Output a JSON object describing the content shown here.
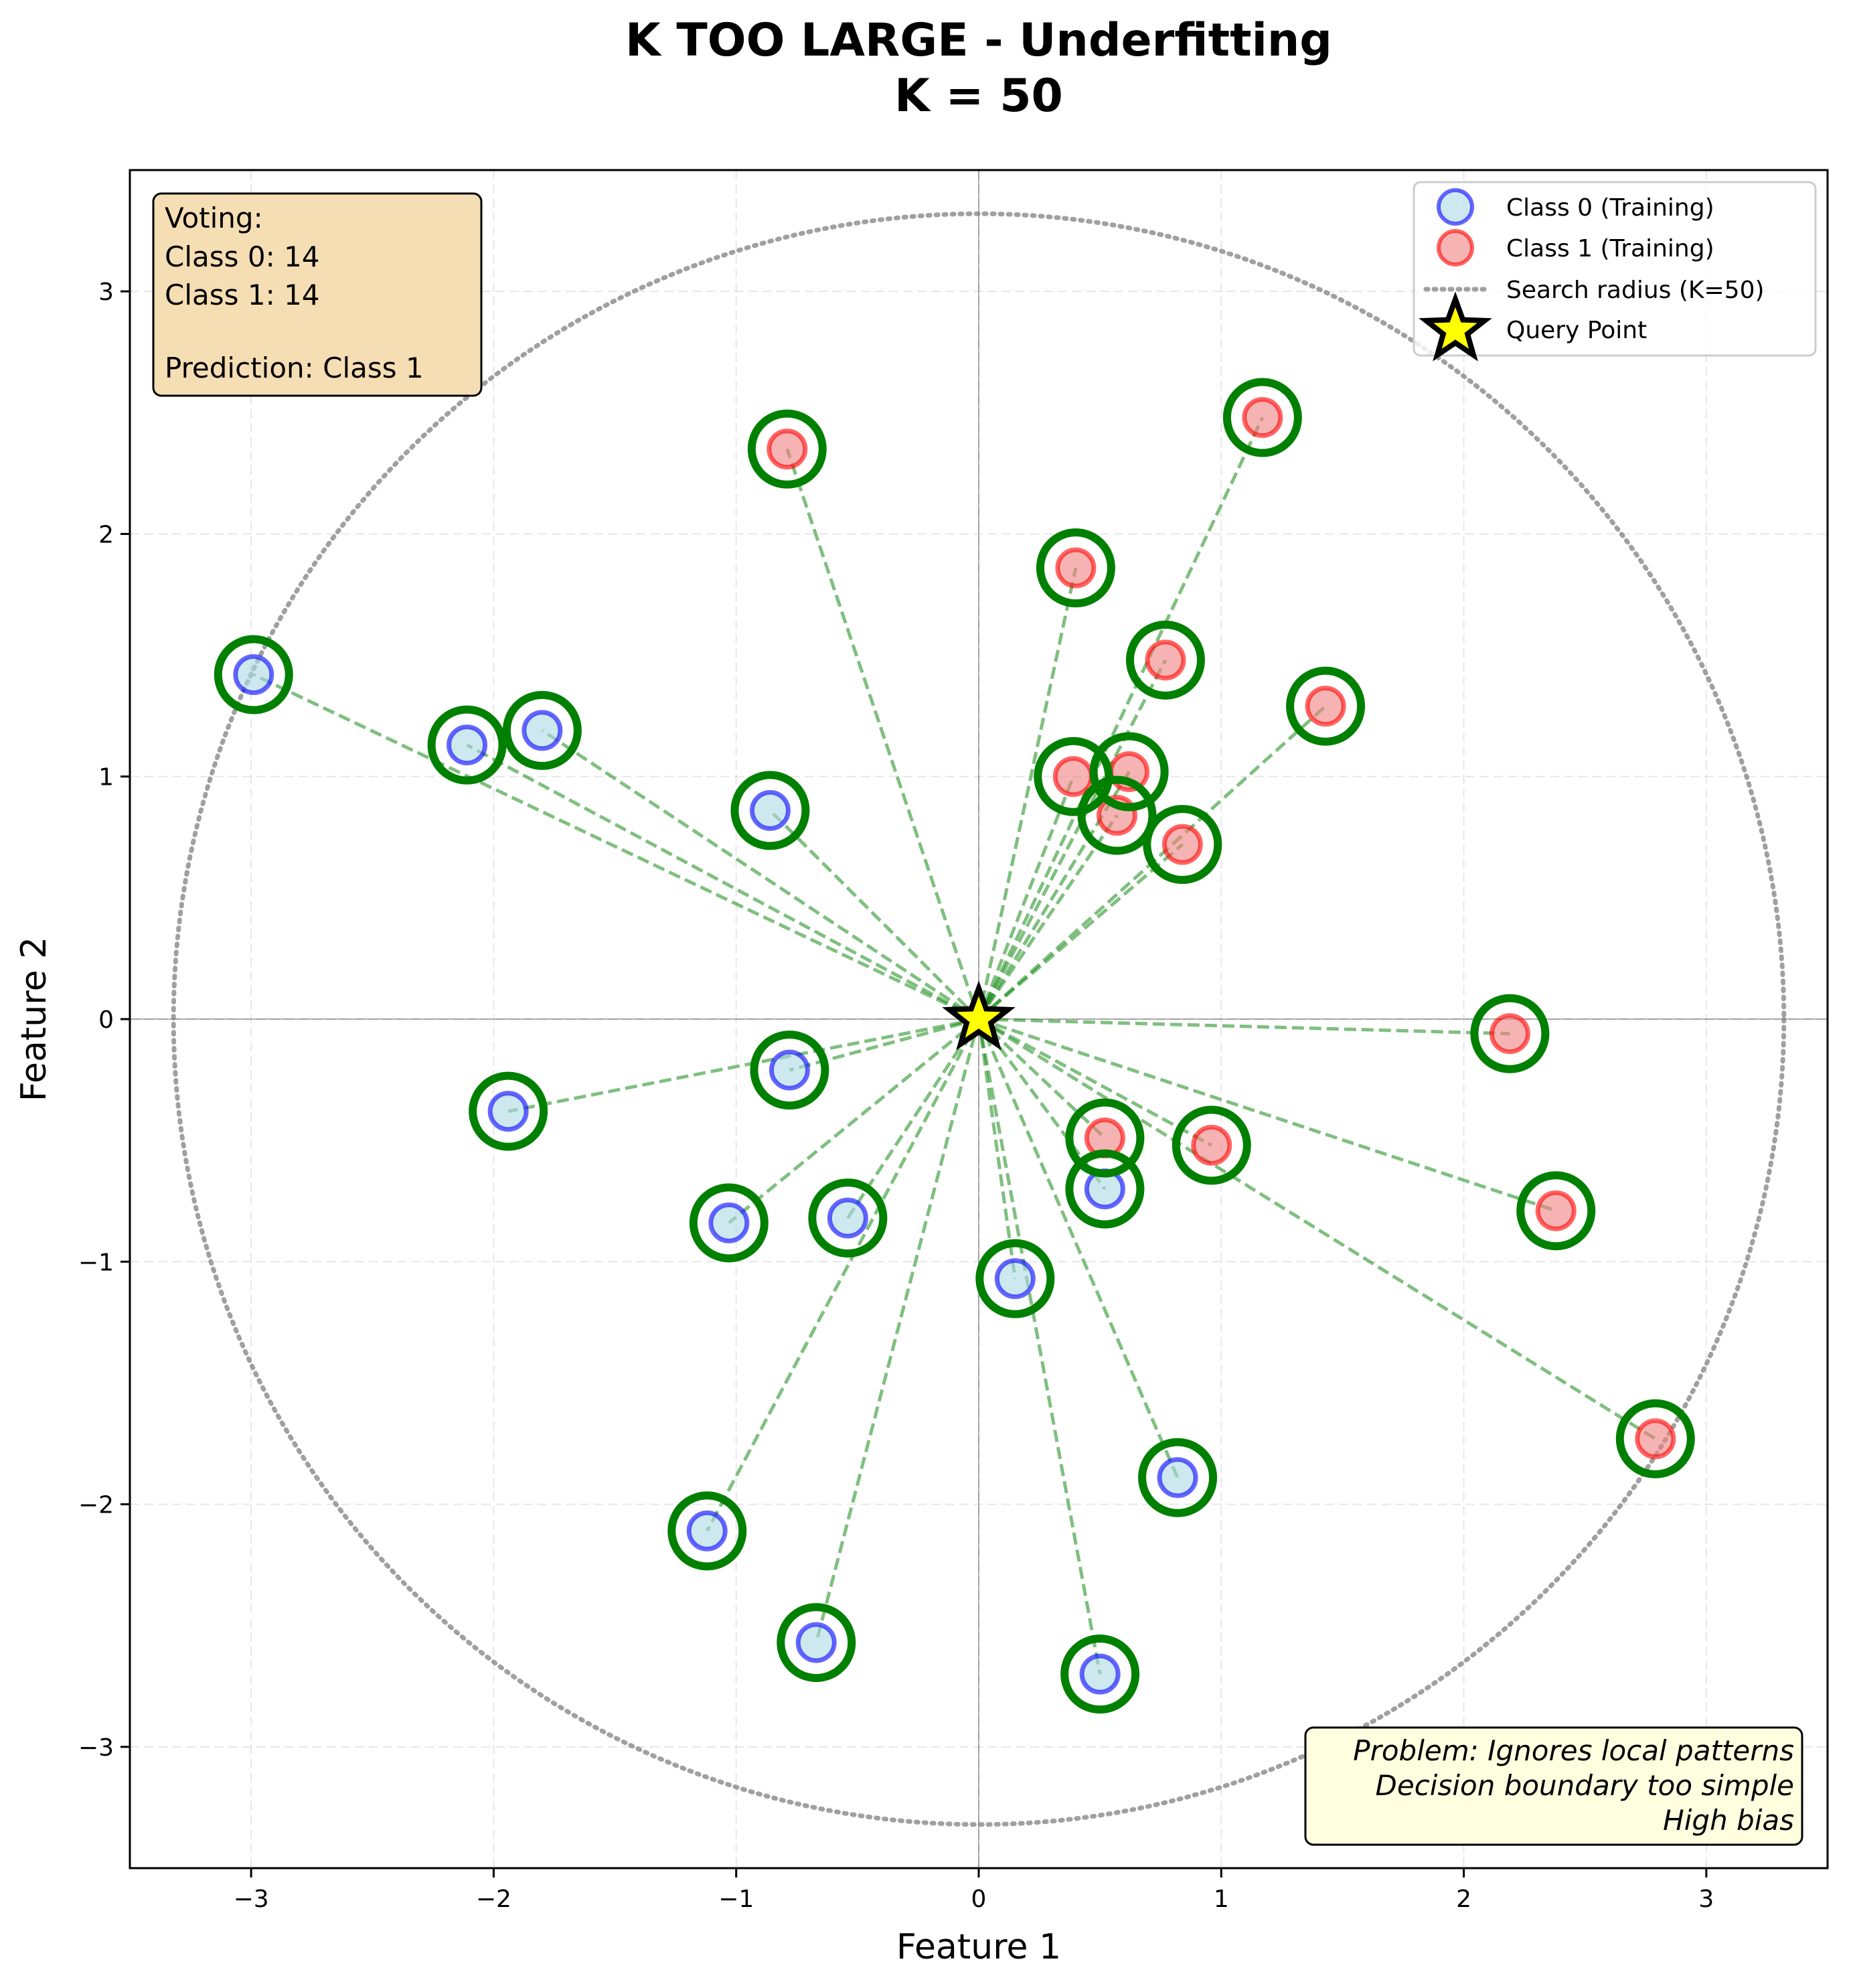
{
  "chart_data": {
    "type": "scatter",
    "title_line1": "K TOO LARGE - Underfitting",
    "title_line2": "K = 50",
    "xlabel": "Feature 1",
    "ylabel": "Feature 2",
    "xlim": [
      -3.5,
      3.5
    ],
    "ylim": [
      -3.5,
      3.5
    ],
    "xticks": [
      -3,
      -2,
      -1,
      0,
      1,
      2,
      3
    ],
    "yticks": [
      -3,
      -2,
      -1,
      0,
      1,
      2,
      3
    ],
    "xtick_labels": [
      "−3",
      "−2",
      "−1",
      "0",
      "1",
      "2",
      "3"
    ],
    "ytick_labels": [
      "−3",
      "−2",
      "−1",
      "0",
      "1",
      "2",
      "3"
    ],
    "grid": true,
    "legend_position": "top-right",
    "colors": {
      "class0_fill": "#add8e6",
      "class0_edge": "#0000ff",
      "class1_fill": "#f08080",
      "class1_edge": "#ff0000",
      "neighbor_ring": "#008000",
      "query_fill": "#ffff00",
      "radius_line": "#808080",
      "voting_box": "#f5deb3",
      "problem_box": "#ffffe0"
    },
    "query_point": {
      "x": 0,
      "y": 0
    },
    "search_radius": 3.32,
    "legend": [
      {
        "key": "class0",
        "label": "Class 0 (Training)"
      },
      {
        "key": "class1",
        "label": "Class 1 (Training)"
      },
      {
        "key": "radius",
        "label": "Search radius (K=50)"
      },
      {
        "key": "query",
        "label": "Query Point"
      }
    ],
    "voting_box": {
      "line1": "Voting:",
      "line2": "Class 0: 14",
      "line3": "Class 1: 14",
      "line4": "Prediction: Class 1"
    },
    "problem_box": {
      "line1": "Problem: Ignores local patterns",
      "line2": "Decision boundary too simple",
      "line3": "High bias"
    },
    "class0_points": [
      {
        "x": -2.99,
        "y": 1.42
      },
      {
        "x": -2.11,
        "y": 1.13
      },
      {
        "x": -1.8,
        "y": 1.19
      },
      {
        "x": -0.86,
        "y": 0.86
      },
      {
        "x": -0.78,
        "y": -0.21
      },
      {
        "x": -1.94,
        "y": -0.38
      },
      {
        "x": -1.03,
        "y": -0.84
      },
      {
        "x": -0.54,
        "y": -0.82
      },
      {
        "x": 0.15,
        "y": -1.07
      },
      {
        "x": 0.52,
        "y": -0.7
      },
      {
        "x": 0.82,
        "y": -1.89
      },
      {
        "x": -1.12,
        "y": -2.11
      },
      {
        "x": -0.67,
        "y": -2.57
      },
      {
        "x": 0.5,
        "y": -2.7
      }
    ],
    "class1_points": [
      {
        "x": -0.79,
        "y": 2.35
      },
      {
        "x": 1.17,
        "y": 2.48
      },
      {
        "x": 0.4,
        "y": 1.86
      },
      {
        "x": 0.77,
        "y": 1.48
      },
      {
        "x": 1.43,
        "y": 1.29
      },
      {
        "x": 0.39,
        "y": 1.0
      },
      {
        "x": 0.62,
        "y": 1.02
      },
      {
        "x": 0.57,
        "y": 0.84
      },
      {
        "x": 0.84,
        "y": 0.72
      },
      {
        "x": 2.19,
        "y": -0.06
      },
      {
        "x": 0.52,
        "y": -0.49
      },
      {
        "x": 0.96,
        "y": -0.52
      },
      {
        "x": 2.38,
        "y": -0.79
      },
      {
        "x": 2.79,
        "y": -1.73
      }
    ]
  }
}
